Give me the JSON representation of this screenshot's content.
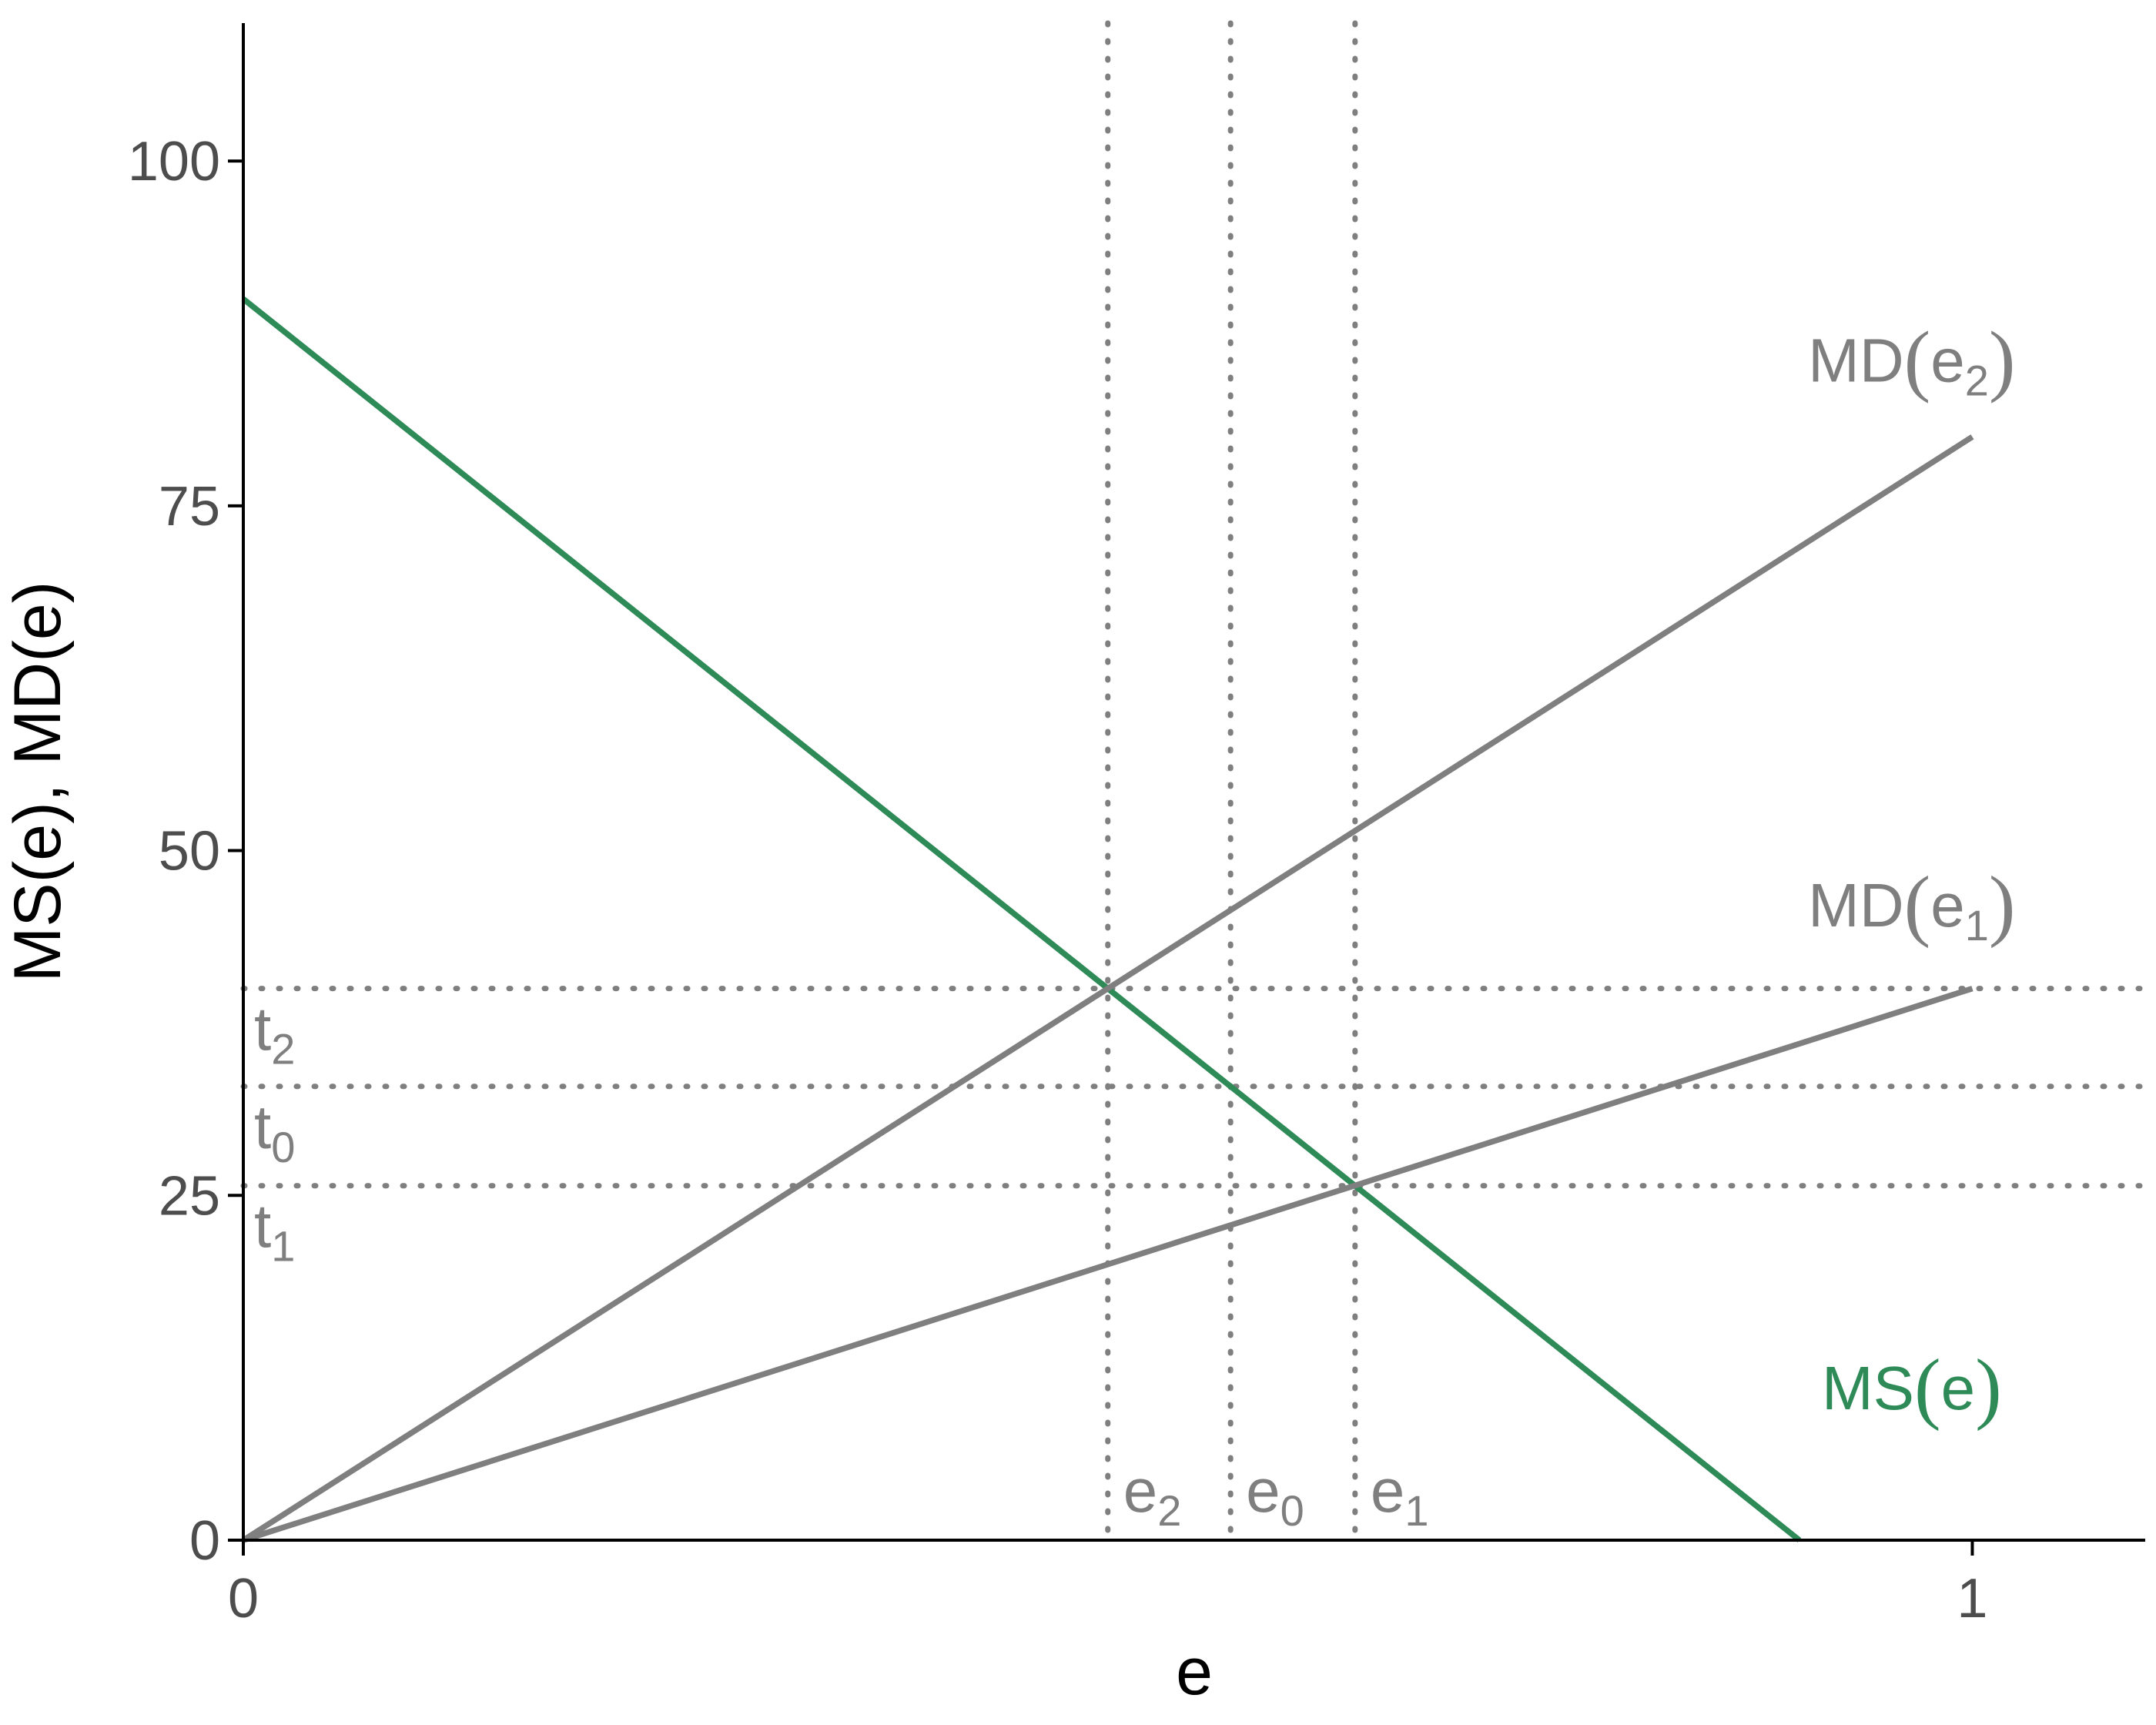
{
  "chart_data": {
    "type": "line",
    "xlabel": "e",
    "ylabel": "MS(e), MD(e)",
    "xlim": [
      0,
      1.1
    ],
    "ylim": [
      0,
      110
    ],
    "x_ticks": [
      0,
      1
    ],
    "y_ticks": [
      0,
      25,
      50,
      75,
      100
    ],
    "grid": false,
    "colors": {
      "ms": "#2e8b57",
      "md": "#7f7f7f",
      "guide": "#7f7f7f",
      "text": "#4d4d4d"
    },
    "series": [
      {
        "name": "MS(e)",
        "color": "#2e8b57",
        "x": [
          0,
          0.9
        ],
        "values": [
          90,
          0
        ]
      },
      {
        "name": "MD(e2)",
        "color": "#7f7f7f",
        "x": [
          0,
          1
        ],
        "values": [
          0,
          80
        ]
      },
      {
        "name": "MD(e1)",
        "color": "#7f7f7f",
        "x": [
          0,
          1
        ],
        "values": [
          0,
          40
        ]
      }
    ],
    "vertical_guides": [
      {
        "label": "e",
        "sub": "2",
        "x": 0.5
      },
      {
        "label": "e",
        "sub": "0",
        "x": 0.571
      },
      {
        "label": "e",
        "sub": "1",
        "x": 0.643
      }
    ],
    "horizontal_guides": [
      {
        "label": "t",
        "sub": "2",
        "y": 40
      },
      {
        "label": "t",
        "sub": "0",
        "y": 32.9
      },
      {
        "label": "t",
        "sub": "1",
        "y": 25.7
      }
    ],
    "curve_labels": [
      {
        "main": "MD",
        "sub": "e",
        "subsub": "2",
        "color": "#7f7f7f",
        "x": 0.965,
        "y": 84
      },
      {
        "main": "MD",
        "sub": "e",
        "subsub": "1",
        "color": "#7f7f7f",
        "x": 0.965,
        "y": 44.5
      },
      {
        "main": "MS",
        "sub": "e",
        "subsub": "",
        "color": "#2e8b57",
        "x": 0.965,
        "y": 9.5
      }
    ]
  }
}
